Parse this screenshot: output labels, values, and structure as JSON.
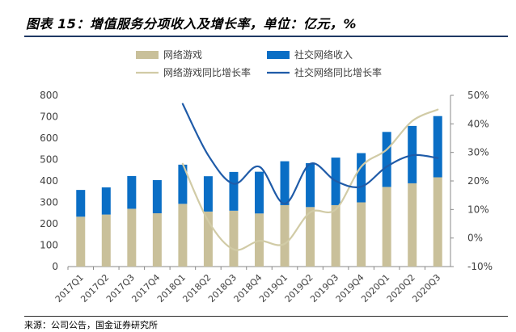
{
  "title": "图表 15：增值服务分项收入及增长率，单位：亿元，%",
  "source": "来源：公司公告，国金证券研究所",
  "colors": {
    "bar_online_game": "#c9c09a",
    "bar_social": "#0a6ec5",
    "line_online_game": "#d1cba6",
    "line_social": "#1f5ba8",
    "axis": "#888888",
    "text": "#404040"
  },
  "chart_data": {
    "type": "bar",
    "categories": [
      "2017Q1",
      "2017Q2",
      "2017Q3",
      "2017Q4",
      "2018Q1",
      "2018Q2",
      "2018Q3",
      "2018Q4",
      "2019Q1",
      "2019Q2",
      "2019Q3",
      "2019Q4",
      "2020Q1",
      "2020Q2",
      "2020Q3"
    ],
    "series": [
      {
        "name": "网络游戏",
        "kind": "bar",
        "axis": "left",
        "values": [
          233,
          243,
          270,
          249,
          293,
          257,
          261,
          248,
          287,
          278,
          287,
          300,
          372,
          389,
          417
        ]
      },
      {
        "name": "社交网络收入",
        "kind": "bar",
        "axis": "left",
        "values": [
          125,
          127,
          153,
          155,
          183,
          165,
          181,
          195,
          205,
          205,
          222,
          230,
          257,
          268,
          286
        ]
      },
      {
        "name": "网络游戏同比增长率",
        "kind": "line",
        "axis": "right",
        "values": [
          null,
          null,
          null,
          null,
          26,
          6,
          -4,
          -1,
          -2,
          9,
          10,
          25,
          31,
          41,
          45
        ]
      },
      {
        "name": "社交网络同比增长率",
        "kind": "line",
        "axis": "right",
        "values": [
          null,
          null,
          null,
          null,
          47,
          29,
          19,
          25,
          12,
          26,
          20,
          18,
          25,
          29,
          28
        ]
      }
    ],
    "ylim_left": [
      0,
      800
    ],
    "yticks_left": [
      "0",
      "100",
      "200",
      "300",
      "400",
      "500",
      "600",
      "700",
      "800"
    ],
    "ylim_right": [
      -10,
      50
    ],
    "yticks_right": [
      "-10%",
      "0%",
      "10%",
      "20%",
      "30%",
      "40%",
      "50%"
    ],
    "legend_position": "top",
    "grid": false
  }
}
